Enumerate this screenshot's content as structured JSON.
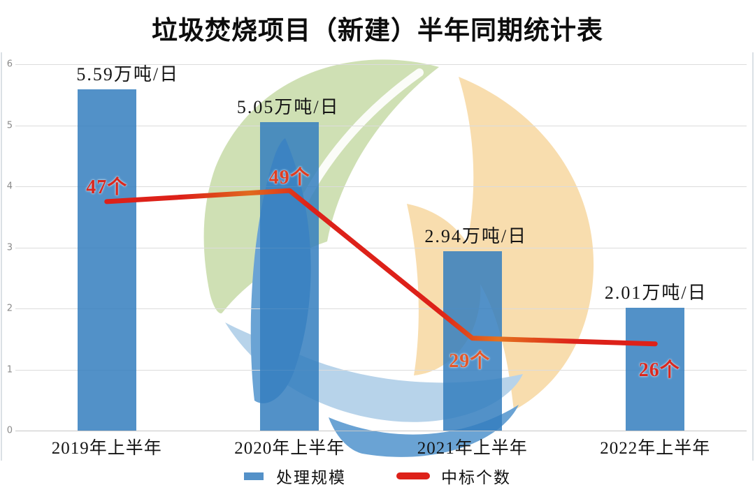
{
  "title": "垃圾焚烧项目（新建）半年同期统计表",
  "chart_data": {
    "type": "bar",
    "title": "垃圾焚烧项目（新建）半年同期统计表",
    "categories": [
      "2019年上半年",
      "2020年上半年",
      "2021年上半年",
      "2022年上半年"
    ],
    "category_slugs": [
      "2019-h1",
      "2020-h1",
      "2021-h1",
      "2022-h1"
    ],
    "series": [
      {
        "name": "处理规模",
        "type": "bar",
        "unit": "万吨/日",
        "values": [
          5.59,
          5.05,
          2.94,
          2.01
        ],
        "labels": [
          "5.59万吨/日",
          "5.05万吨/日",
          "2.94万吨/日",
          "2.01万吨/日"
        ],
        "color": "#5491c8"
      },
      {
        "name": "中标个数",
        "type": "line",
        "unit": "个",
        "values": [
          47,
          49,
          29,
          26
        ],
        "labels": [
          "47个",
          "49个",
          "29个",
          "26个"
        ],
        "label_colors": [
          "#d9281f",
          "#df3d22",
          "#e2572a",
          "#d9281f"
        ],
        "color": "#dd2119"
      }
    ],
    "xlabel": "",
    "ylabel": "",
    "ylim": [
      0,
      6
    ],
    "yticks": [
      0,
      1,
      2,
      3,
      4,
      5,
      6
    ],
    "y2lim": [
      12,
      68
    ],
    "grid": true,
    "legend_position": "bottom"
  },
  "legend": {
    "items": [
      {
        "label": "处理规模",
        "swatch": "bar",
        "color": "#5491c8"
      },
      {
        "label": "中标个数",
        "swatch": "line",
        "color": "#dd2119"
      }
    ]
  },
  "watermark": {
    "name": "eco-leaf-logo",
    "colors": {
      "green": "#cfe0b4",
      "orange": "#f8ddae",
      "light_blue": "#b7d3ea",
      "blue": "#6aa3d4"
    }
  }
}
